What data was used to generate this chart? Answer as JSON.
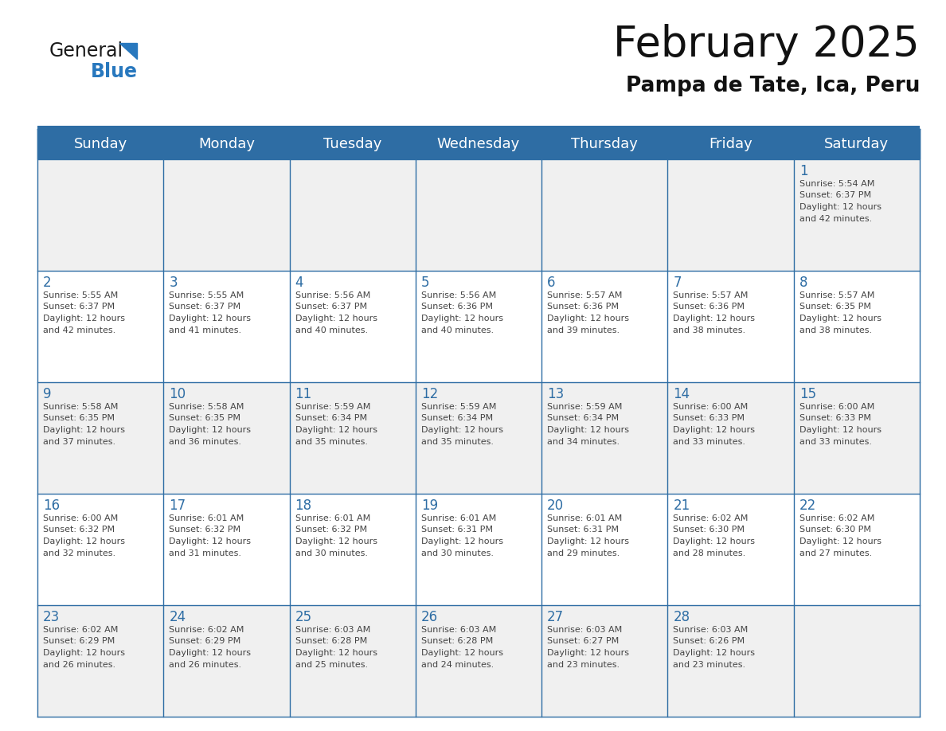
{
  "title": "February 2025",
  "subtitle": "Pampa de Tate, Ica, Peru",
  "header_bg": "#2E6DA4",
  "header_text": "#FFFFFF",
  "cell_bg_light": "#F0F0F0",
  "cell_bg_white": "#FFFFFF",
  "cell_text": "#444444",
  "day_number_color": "#2E6DA4",
  "border_color": "#2E6DA4",
  "days_of_week": [
    "Sunday",
    "Monday",
    "Tuesday",
    "Wednesday",
    "Thursday",
    "Friday",
    "Saturday"
  ],
  "logo_general_color": "#1a1a1a",
  "logo_blue_color": "#2878BE",
  "logo_triangle_color": "#2878BE",
  "calendar_data": [
    [
      null,
      null,
      null,
      null,
      null,
      null,
      {
        "day": 1,
        "sunrise": "5:54 AM",
        "sunset": "6:37 PM",
        "daylight": "12 hours\nand 42 minutes."
      }
    ],
    [
      {
        "day": 2,
        "sunrise": "5:55 AM",
        "sunset": "6:37 PM",
        "daylight": "12 hours\nand 42 minutes."
      },
      {
        "day": 3,
        "sunrise": "5:55 AM",
        "sunset": "6:37 PM",
        "daylight": "12 hours\nand 41 minutes."
      },
      {
        "day": 4,
        "sunrise": "5:56 AM",
        "sunset": "6:37 PM",
        "daylight": "12 hours\nand 40 minutes."
      },
      {
        "day": 5,
        "sunrise": "5:56 AM",
        "sunset": "6:36 PM",
        "daylight": "12 hours\nand 40 minutes."
      },
      {
        "day": 6,
        "sunrise": "5:57 AM",
        "sunset": "6:36 PM",
        "daylight": "12 hours\nand 39 minutes."
      },
      {
        "day": 7,
        "sunrise": "5:57 AM",
        "sunset": "6:36 PM",
        "daylight": "12 hours\nand 38 minutes."
      },
      {
        "day": 8,
        "sunrise": "5:57 AM",
        "sunset": "6:35 PM",
        "daylight": "12 hours\nand 38 minutes."
      }
    ],
    [
      {
        "day": 9,
        "sunrise": "5:58 AM",
        "sunset": "6:35 PM",
        "daylight": "12 hours\nand 37 minutes."
      },
      {
        "day": 10,
        "sunrise": "5:58 AM",
        "sunset": "6:35 PM",
        "daylight": "12 hours\nand 36 minutes."
      },
      {
        "day": 11,
        "sunrise": "5:59 AM",
        "sunset": "6:34 PM",
        "daylight": "12 hours\nand 35 minutes."
      },
      {
        "day": 12,
        "sunrise": "5:59 AM",
        "sunset": "6:34 PM",
        "daylight": "12 hours\nand 35 minutes."
      },
      {
        "day": 13,
        "sunrise": "5:59 AM",
        "sunset": "6:34 PM",
        "daylight": "12 hours\nand 34 minutes."
      },
      {
        "day": 14,
        "sunrise": "6:00 AM",
        "sunset": "6:33 PM",
        "daylight": "12 hours\nand 33 minutes."
      },
      {
        "day": 15,
        "sunrise": "6:00 AM",
        "sunset": "6:33 PM",
        "daylight": "12 hours\nand 33 minutes."
      }
    ],
    [
      {
        "day": 16,
        "sunrise": "6:00 AM",
        "sunset": "6:32 PM",
        "daylight": "12 hours\nand 32 minutes."
      },
      {
        "day": 17,
        "sunrise": "6:01 AM",
        "sunset": "6:32 PM",
        "daylight": "12 hours\nand 31 minutes."
      },
      {
        "day": 18,
        "sunrise": "6:01 AM",
        "sunset": "6:32 PM",
        "daylight": "12 hours\nand 30 minutes."
      },
      {
        "day": 19,
        "sunrise": "6:01 AM",
        "sunset": "6:31 PM",
        "daylight": "12 hours\nand 30 minutes."
      },
      {
        "day": 20,
        "sunrise": "6:01 AM",
        "sunset": "6:31 PM",
        "daylight": "12 hours\nand 29 minutes."
      },
      {
        "day": 21,
        "sunrise": "6:02 AM",
        "sunset": "6:30 PM",
        "daylight": "12 hours\nand 28 minutes."
      },
      {
        "day": 22,
        "sunrise": "6:02 AM",
        "sunset": "6:30 PM",
        "daylight": "12 hours\nand 27 minutes."
      }
    ],
    [
      {
        "day": 23,
        "sunrise": "6:02 AM",
        "sunset": "6:29 PM",
        "daylight": "12 hours\nand 26 minutes."
      },
      {
        "day": 24,
        "sunrise": "6:02 AM",
        "sunset": "6:29 PM",
        "daylight": "12 hours\nand 26 minutes."
      },
      {
        "day": 25,
        "sunrise": "6:03 AM",
        "sunset": "6:28 PM",
        "daylight": "12 hours\nand 25 minutes."
      },
      {
        "day": 26,
        "sunrise": "6:03 AM",
        "sunset": "6:28 PM",
        "daylight": "12 hours\nand 24 minutes."
      },
      {
        "day": 27,
        "sunrise": "6:03 AM",
        "sunset": "6:27 PM",
        "daylight": "12 hours\nand 23 minutes."
      },
      {
        "day": 28,
        "sunrise": "6:03 AM",
        "sunset": "6:26 PM",
        "daylight": "12 hours\nand 23 minutes."
      },
      null
    ]
  ]
}
